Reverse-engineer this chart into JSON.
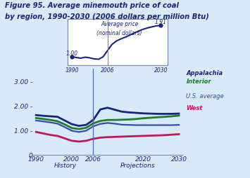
{
  "title_line1": "Figure 95. Average minemouth price of coal",
  "title_line2": "by region, 1990-2030 (2006 dollars per million Btu)",
  "background_color": "#d6eaf8",
  "title_color": "#1a237e",
  "years_history": [
    1990,
    1992,
    1994,
    1996,
    1998,
    2000,
    2002,
    2004,
    2006
  ],
  "years_projection": [
    2006,
    2008,
    2010,
    2012,
    2014,
    2016,
    2018,
    2020,
    2022,
    2024,
    2026,
    2028,
    2030
  ],
  "appalachia_history": [
    1.62,
    1.59,
    1.57,
    1.55,
    1.4,
    1.25,
    1.18,
    1.22,
    1.42
  ],
  "appalachia_projection": [
    1.42,
    1.85,
    1.92,
    1.84,
    1.76,
    1.73,
    1.71,
    1.69,
    1.68,
    1.67,
    1.67,
    1.67,
    1.68
  ],
  "interior_history": [
    1.5,
    1.46,
    1.42,
    1.37,
    1.24,
    1.09,
    1.05,
    1.1,
    1.28
  ],
  "interior_projection": [
    1.28,
    1.38,
    1.42,
    1.42,
    1.43,
    1.44,
    1.46,
    1.49,
    1.51,
    1.53,
    1.55,
    1.57,
    1.6
  ],
  "us_avg_history": [
    1.4,
    1.36,
    1.32,
    1.27,
    1.13,
    0.98,
    0.93,
    0.98,
    1.16
  ],
  "us_avg_projection": [
    1.16,
    1.26,
    1.3,
    1.27,
    1.23,
    1.22,
    1.21,
    1.21,
    1.21,
    1.21,
    1.21,
    1.21,
    1.22
  ],
  "west_history": [
    0.93,
    0.87,
    0.81,
    0.77,
    0.67,
    0.57,
    0.54,
    0.57,
    0.65
  ],
  "west_projection": [
    0.65,
    0.7,
    0.72,
    0.73,
    0.74,
    0.75,
    0.76,
    0.77,
    0.78,
    0.79,
    0.8,
    0.82,
    0.84
  ],
  "nominal_history": [
    1.0,
    0.98,
    0.96,
    0.99,
    0.97,
    0.94,
    0.93,
    1.0,
    1.18
  ],
  "nominal_projection": [
    1.18,
    1.36,
    1.46,
    1.52,
    1.57,
    1.63,
    1.69,
    1.75,
    1.8,
    1.84,
    1.87,
    1.9,
    1.91
  ],
  "appalachia_color": "#1a237e",
  "interior_color": "#1b7e2a",
  "us_avg_color": "#3949ab",
  "west_color": "#c2185b",
  "nominal_color": "#1a237e",
  "vline_x": 2006,
  "ylim": [
    0,
    3.5
  ],
  "yticks": [
    0,
    1.0,
    2.0,
    3.0
  ],
  "xticks": [
    1990,
    2000,
    2006,
    2020,
    2030
  ],
  "history_label": "History",
  "projection_label": "Projections",
  "inset_title1": "Average price",
  "inset_title2": "(nominal dollars)",
  "inset_val_1990": "1.00",
  "inset_val_2030": "1.91"
}
